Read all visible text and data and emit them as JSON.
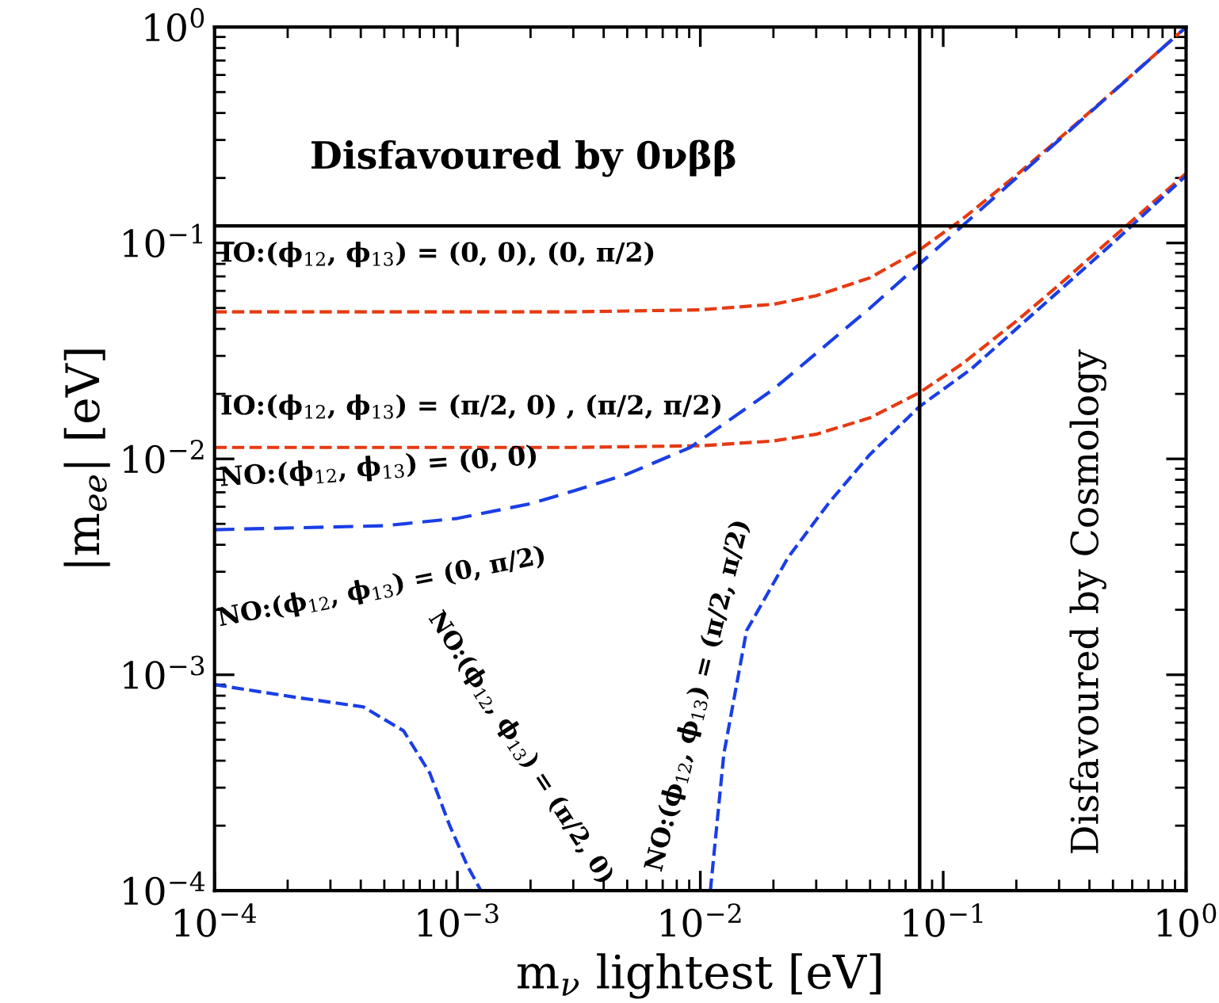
{
  "chart_data": {
    "type": "line",
    "log": "xy",
    "grid": false,
    "legend": false,
    "line_style": "dashed",
    "marker": "none",
    "xlabel": "m$_{ν}$ lightest [eV]",
    "ylabel": "|m$_{ee}$| [eV]",
    "xlim": [
      0.0001,
      1
    ],
    "ylim": [
      0.0001,
      1
    ],
    "xticks": [
      {
        "value": 0.0001,
        "label": "10$^{−4}$"
      },
      {
        "value": 0.001,
        "label": "10$^{−3}$"
      },
      {
        "value": 0.01,
        "label": "10$^{−2}$"
      },
      {
        "value": 0.1,
        "label": "10$^{−1}$"
      },
      {
        "value": 1,
        "label": "10$^{0}$"
      }
    ],
    "yticks": [
      {
        "value": 0.0001,
        "label": "10$^{−4}$"
      },
      {
        "value": 0.001,
        "label": "10$^{−3}$"
      },
      {
        "value": 0.01,
        "label": "10$^{−2}$"
      },
      {
        "value": 0.1,
        "label": "10$^{−1}$"
      },
      {
        "value": 1,
        "label": "10$^{0}$"
      }
    ],
    "series": [
      {
        "color": "#e63a12",
        "x": [
          0.0001,
          0.001,
          0.003,
          0.01,
          0.02,
          0.03,
          0.05,
          0.08,
          0.12,
          0.2,
          0.3,
          0.5,
          1
        ],
        "values": [
          0.048,
          0.048,
          0.048,
          0.049,
          0.052,
          0.057,
          0.069,
          0.093,
          0.129,
          0.206,
          0.304,
          0.502,
          1.0
        ]
      },
      {
        "color": "#e63a12",
        "x": [
          0.0001,
          0.001,
          0.003,
          0.01,
          0.02,
          0.03,
          0.05,
          0.08,
          0.12,
          0.2,
          0.3,
          0.5,
          1
        ],
        "values": [
          0.0113,
          0.0113,
          0.0113,
          0.0115,
          0.0121,
          0.013,
          0.0155,
          0.0203,
          0.0276,
          0.0434,
          0.064,
          0.106,
          0.21
        ]
      },
      {
        "color": "#1a3ee6",
        "x": [
          0.0001,
          0.0005,
          0.001,
          0.002,
          0.003,
          0.005,
          0.0091,
          0.02,
          0.05,
          0.08,
          0.2,
          0.5,
          1
        ],
        "values": [
          0.0047,
          0.0049,
          0.0053,
          0.0062,
          0.0071,
          0.0085,
          0.0113,
          0.021,
          0.05,
          0.08,
          0.2,
          0.5,
          1.0
        ]
      },
      {
        "color": "#1a3ee6",
        "x": [
          0.0001,
          0.00021,
          0.00041,
          0.0006,
          0.00077,
          0.00093,
          0.0011,
          0.00125
        ],
        "values": [
          0.0009,
          0.00079,
          0.00071,
          0.00055,
          0.00035,
          0.0002,
          0.00013,
          0.0001
        ]
      },
      {
        "color": "#1a3ee6",
        "x": [
          0.011,
          0.0125,
          0.0155,
          0.023,
          0.034,
          0.05,
          0.08,
          0.13,
          0.2,
          0.5,
          1
        ],
        "values": [
          0.0001,
          0.00043,
          0.0016,
          0.0035,
          0.0063,
          0.0105,
          0.0175,
          0.026,
          0.04,
          0.1,
          0.205
        ]
      }
    ],
    "ref_lines": [
      {
        "axis": "y",
        "value": 0.12,
        "color": "#000000"
      },
      {
        "axis": "x",
        "value": 0.08,
        "color": "#000000"
      }
    ],
    "annotations": [
      "IO:(ϕ$_{12}$, ϕ$_{13}$) = (0, 0), (0, π/2)",
      "IO:(ϕ$_{12}$, ϕ$_{13}$) = (π/2, 0) , (π/2, π/2)",
      "NO:(ϕ$_{12}$, ϕ$_{13}$) = (0, 0)",
      "NO:(ϕ$_{12}$, ϕ$_{13}$) = (0, π/2)",
      "NO:(ϕ$_{12}$, ϕ$_{13}$) = (π/2, 0)",
      "NO:(ϕ$_{12}$, ϕ$_{13}$) = (π/2, π/2)",
      "Disfavoured by 0νββ",
      "Disfavoured by Cosmology"
    ]
  }
}
